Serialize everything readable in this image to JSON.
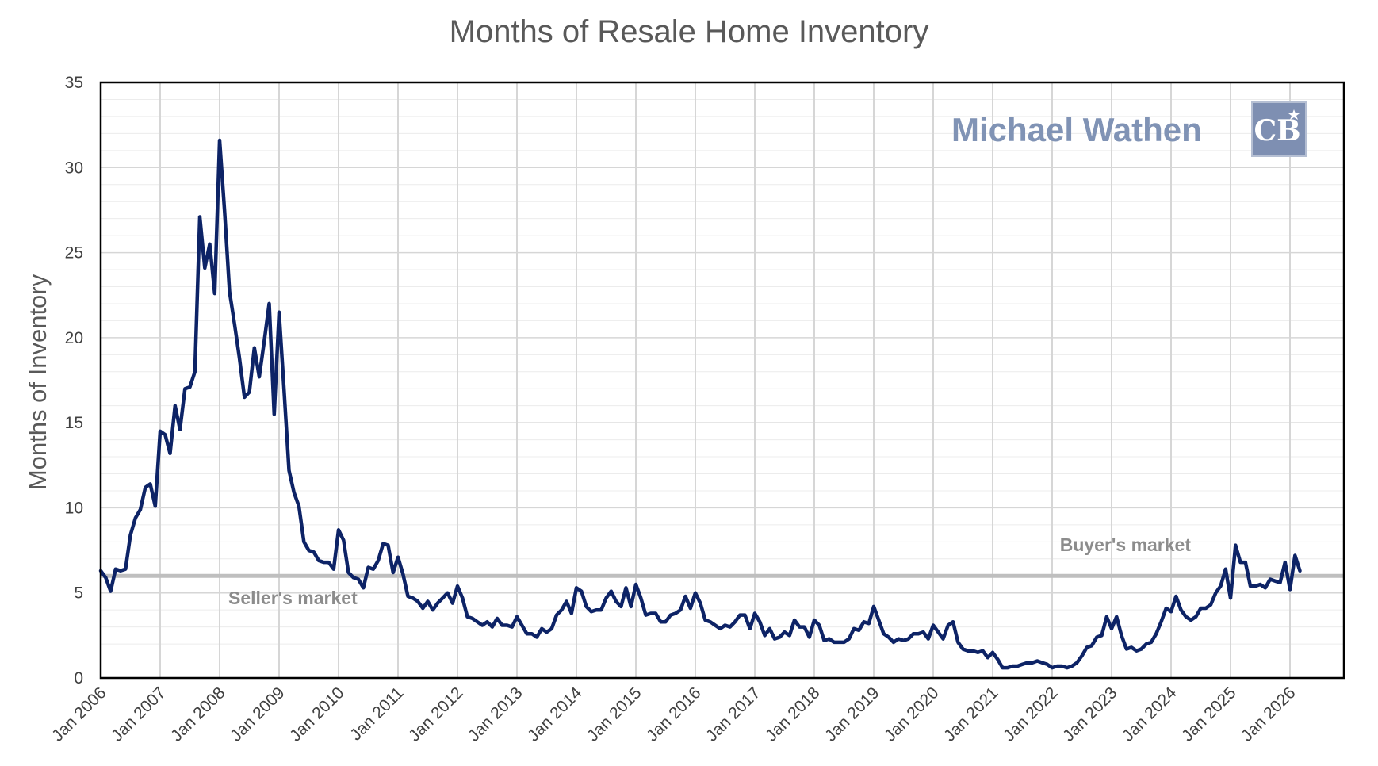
{
  "chart_data": {
    "type": "line",
    "title": "Months of Resale Home Inventory",
    "ylabel": "Months of Inventory",
    "xlabel": "",
    "ylim": [
      0,
      35
    ],
    "yticks": [
      0,
      5,
      10,
      15,
      20,
      25,
      30,
      35
    ],
    "xticks": [
      "Jan 2006",
      "Jan 2007",
      "Jan 2008",
      "Jan 2009",
      "Jan 2010",
      "Jan 2011",
      "Jan 2012",
      "Jan 2013",
      "Jan 2014",
      "Jan 2015",
      "Jan 2016",
      "Jan 2017",
      "Jan 2018",
      "Jan 2019",
      "Jan 2020",
      "Jan 2021",
      "Jan 2022",
      "Jan 2023",
      "Jan 2024",
      "Jan 2025",
      "Jan 2026"
    ],
    "grid": true,
    "x_start": "Jan 2006",
    "x_end": "Mar 2026",
    "series": [
      {
        "color": "#0d2366",
        "values": [
          6.3,
          5.9,
          5.1,
          6.4,
          6.3,
          6.4,
          8.4,
          9.4,
          9.9,
          11.2,
          11.4,
          10.1,
          14.5,
          14.3,
          13.2,
          16.0,
          14.6,
          17.0,
          17.1,
          18.0,
          27.1,
          24.1,
          25.5,
          22.6,
          31.6,
          27.4,
          22.7,
          20.8,
          18.8,
          16.5,
          16.8,
          19.4,
          17.7,
          19.8,
          22.0,
          15.5,
          21.5,
          16.9,
          12.2,
          10.9,
          10.1,
          8.0,
          7.5,
          7.4,
          6.9,
          6.8,
          6.8,
          6.4,
          8.7,
          8.1,
          6.2,
          5.9,
          5.8,
          5.3,
          6.5,
          6.4,
          6.9,
          7.9,
          7.8,
          6.2,
          7.1,
          6.1,
          4.8,
          4.7,
          4.5,
          4.1,
          4.5,
          4.0,
          4.4,
          4.7,
          5.0,
          4.4,
          5.4,
          4.7,
          3.6,
          3.5,
          3.3,
          3.1,
          3.3,
          3.0,
          3.5,
          3.1,
          3.1,
          3.0,
          3.6,
          3.1,
          2.6,
          2.6,
          2.4,
          2.9,
          2.7,
          2.9,
          3.7,
          4.0,
          4.5,
          3.8,
          5.3,
          5.1,
          4.2,
          3.9,
          4.0,
          4.0,
          4.7,
          5.1,
          4.5,
          4.2,
          5.3,
          4.2,
          5.5,
          4.7,
          3.7,
          3.8,
          3.8,
          3.3,
          3.3,
          3.7,
          3.8,
          4.0,
          4.8,
          4.1,
          5.0,
          4.4,
          3.4,
          3.3,
          3.1,
          2.9,
          3.1,
          3.0,
          3.3,
          3.7,
          3.7,
          2.9,
          3.8,
          3.3,
          2.5,
          2.9,
          2.3,
          2.4,
          2.7,
          2.5,
          3.4,
          3.0,
          3.0,
          2.4,
          3.4,
          3.1,
          2.2,
          2.3,
          2.1,
          2.1,
          2.1,
          2.3,
          2.9,
          2.8,
          3.3,
          3.2,
          4.2,
          3.4,
          2.6,
          2.4,
          2.1,
          2.3,
          2.2,
          2.3,
          2.6,
          2.6,
          2.7,
          2.3,
          3.1,
          2.7,
          2.3,
          3.1,
          3.3,
          2.1,
          1.7,
          1.6,
          1.6,
          1.5,
          1.6,
          1.2,
          1.5,
          1.1,
          0.6,
          0.6,
          0.7,
          0.7,
          0.8,
          0.9,
          0.9,
          1.0,
          0.9,
          0.8,
          0.6,
          0.7,
          0.7,
          0.6,
          0.7,
          0.9,
          1.3,
          1.8,
          1.9,
          2.4,
          2.5,
          3.6,
          2.9,
          3.6,
          2.5,
          1.7,
          1.8,
          1.6,
          1.7,
          2.0,
          2.1,
          2.6,
          3.3,
          4.1,
          3.9,
          4.8,
          4.0,
          3.6,
          3.4,
          3.6,
          4.1,
          4.1,
          4.3,
          5.0,
          5.4,
          6.4,
          4.7,
          7.8,
          6.8,
          6.8,
          5.4,
          5.4,
          5.5,
          5.3,
          5.8,
          5.7,
          5.6,
          6.8,
          5.2,
          7.2,
          6.3
        ]
      }
    ],
    "reference_line": {
      "value": 6,
      "color": "#bfbfbf"
    },
    "annotations": [
      {
        "text": "Seller's market"
      },
      {
        "text": "Buyer's market"
      }
    ]
  },
  "branding": {
    "name": "Michael Wathen",
    "logo_text": "CB",
    "logo_icon": "coldwell-banker-logo-icon"
  }
}
